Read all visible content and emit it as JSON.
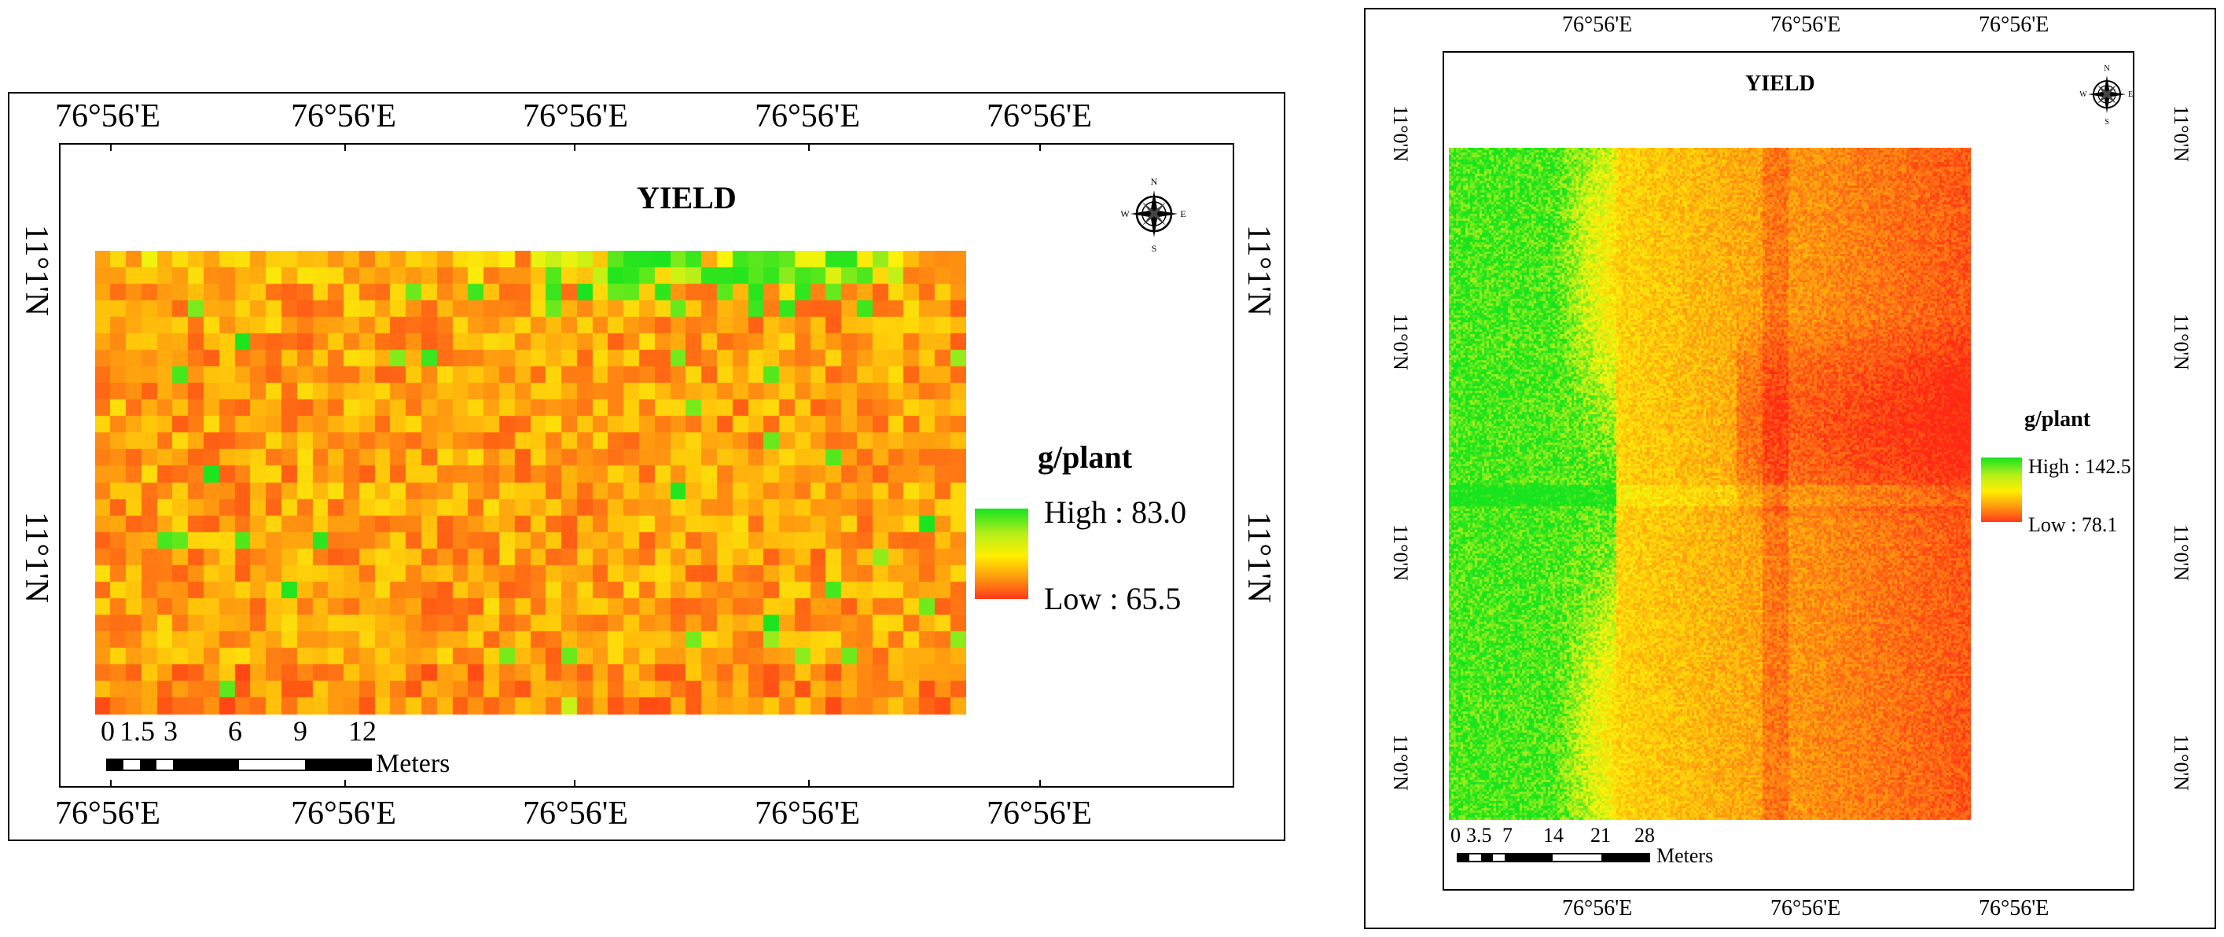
{
  "left_map": {
    "title": "YIELD",
    "legend": {
      "unit": "g/plant",
      "high_label": "High : 83.0",
      "low_label": "Low : 65.5",
      "high_value": 83.0,
      "low_value": 65.5,
      "high_color": "#14e41e",
      "low_color": "#ff3a1a"
    },
    "top_longitude_labels": [
      "76°56'E",
      "76°56'E",
      "76°56'E",
      "76°56'E",
      "76°56'E"
    ],
    "bottom_longitude_labels": [
      "76°56'E",
      "76°56'E",
      "76°56'E",
      "76°56'E",
      "76°56'E"
    ],
    "left_latitude_labels": [
      "11°1'N",
      "11°1'N"
    ],
    "right_latitude_labels": [
      "11°1'N",
      "11°1'N"
    ],
    "scale": {
      "ticks": [
        "0",
        "1.5",
        "3",
        "6",
        "9",
        "12"
      ],
      "unit": "Meters"
    },
    "compass": {
      "n": "N",
      "s": "S",
      "e": "E",
      "w": "W"
    }
  },
  "right_map": {
    "title": "YIELD",
    "legend": {
      "unit": "g/plant",
      "high_label": "High : 142.5",
      "low_label": "Low : 78.1",
      "high_value": 142.5,
      "low_value": 78.1,
      "high_color": "#14e41e",
      "low_color": "#ff3a1a"
    },
    "top_longitude_labels": [
      "76°56'E",
      "76°56'E",
      "76°56'E"
    ],
    "bottom_longitude_labels": [
      "76°56'E",
      "76°56'E",
      "76°56'E"
    ],
    "left_latitude_labels": [
      "11°0'N",
      "11°0'N",
      "11°0'N",
      "11°0'N"
    ],
    "right_latitude_labels": [
      "11°0'N",
      "11°0'N",
      "11°0'N",
      "11°0'N"
    ],
    "scale": {
      "ticks": [
        "0",
        "3.5",
        "7",
        "14",
        "21",
        "28"
      ],
      "unit": "Meters"
    },
    "compass": {
      "n": "N",
      "s": "S",
      "e": "E",
      "w": "W"
    }
  }
}
